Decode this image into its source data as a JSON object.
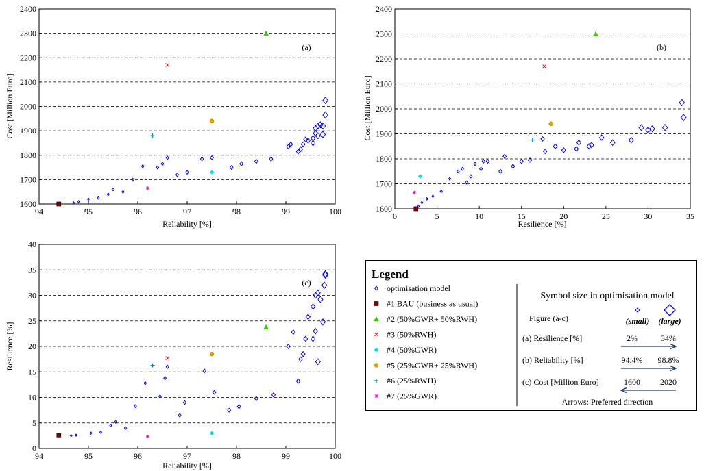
{
  "colors": {
    "optimisation": "#0000ff",
    "bau": "#8b0000",
    "gwr50_rwh50": "#33cc00",
    "rwh50": "#ff0000",
    "gwr50": "#00e5ee",
    "gwr25_rwh25": "#e0a800",
    "rwh25": "#008fb0",
    "gwr25": "#ff00cc"
  },
  "chart_data": [
    {
      "id": "a",
      "type": "scatter",
      "panel_label": "(a)",
      "xlabel": "Reliability [%]",
      "ylabel": "Cost [Million Euro]",
      "xlim": [
        94,
        100
      ],
      "ylim": [
        1600,
        2400
      ],
      "xticks": [
        "94",
        "95",
        "96",
        "97",
        "98",
        "99",
        "100"
      ],
      "yticks": [
        "1600",
        "1700",
        "1800",
        "1900",
        "2000",
        "2100",
        "2200",
        "2300",
        "2400"
      ],
      "grid": "horizontal dashed",
      "optimisation_points": [
        [
          94.7,
          1605
        ],
        [
          94.8,
          1610
        ],
        [
          95.0,
          1620
        ],
        [
          95.2,
          1625
        ],
        [
          95.4,
          1640
        ],
        [
          95.5,
          1660
        ],
        [
          95.7,
          1650
        ],
        [
          95.9,
          1700
        ],
        [
          96.1,
          1755
        ],
        [
          96.4,
          1750
        ],
        [
          96.5,
          1765
        ],
        [
          96.6,
          1790
        ],
        [
          96.8,
          1720
        ],
        [
          97.0,
          1730
        ],
        [
          97.3,
          1785
        ],
        [
          97.5,
          1790
        ],
        [
          97.9,
          1750
        ],
        [
          98.1,
          1765
        ],
        [
          98.4,
          1775
        ],
        [
          98.7,
          1785
        ],
        [
          99.05,
          1835
        ],
        [
          99.1,
          1845
        ],
        [
          99.25,
          1815
        ],
        [
          99.3,
          1825
        ],
        [
          99.35,
          1845
        ],
        [
          99.4,
          1865
        ],
        [
          99.45,
          1860
        ],
        [
          99.55,
          1850
        ],
        [
          99.55,
          1870
        ],
        [
          99.6,
          1890
        ],
        [
          99.6,
          1910
        ],
        [
          99.65,
          1920
        ],
        [
          99.65,
          1880
        ],
        [
          99.7,
          1925
        ],
        [
          99.75,
          1885
        ],
        [
          99.75,
          1920
        ],
        [
          99.8,
          1965
        ],
        [
          99.8,
          2025
        ]
      ],
      "special_points": [
        {
          "series": "bau",
          "x": 94.4,
          "y": 1600
        },
        {
          "series": "gwr50_rwh50",
          "x": 98.6,
          "y": 2300
        },
        {
          "series": "rwh50",
          "x": 96.6,
          "y": 2170
        },
        {
          "series": "gwr50",
          "x": 97.5,
          "y": 1730
        },
        {
          "series": "gwr25_rwh25",
          "x": 97.5,
          "y": 1940
        },
        {
          "series": "rwh25",
          "x": 96.3,
          "y": 1880
        },
        {
          "series": "gwr25",
          "x": 96.2,
          "y": 1665
        }
      ]
    },
    {
      "id": "b",
      "type": "scatter",
      "panel_label": "(b)",
      "xlabel": "Resilience [%]",
      "ylabel": "Cost [Million Euro]",
      "xlim": [
        0,
        35
      ],
      "ylim": [
        1600,
        2400
      ],
      "xticks": [
        "0",
        "5",
        "10",
        "15",
        "20",
        "25",
        "30",
        "35"
      ],
      "yticks": [
        "1600",
        "1700",
        "1800",
        "1900",
        "2000",
        "2100",
        "2200",
        "2300",
        "2400"
      ],
      "grid": "horizontal dashed",
      "optimisation_points": [
        [
          2.5,
          1605
        ],
        [
          2.8,
          1610
        ],
        [
          3.2,
          1625
        ],
        [
          3.8,
          1640
        ],
        [
          4.5,
          1650
        ],
        [
          5.5,
          1670
        ],
        [
          6.5,
          1720
        ],
        [
          7.5,
          1750
        ],
        [
          8.0,
          1760
        ],
        [
          8.5,
          1705
        ],
        [
          9.0,
          1730
        ],
        [
          9.5,
          1780
        ],
        [
          10.2,
          1760
        ],
        [
          10.5,
          1790
        ],
        [
          11.0,
          1790
        ],
        [
          12.5,
          1750
        ],
        [
          13.0,
          1810
        ],
        [
          14.0,
          1770
        ],
        [
          15.0,
          1790
        ],
        [
          16.0,
          1795
        ],
        [
          17.5,
          1880
        ],
        [
          17.8,
          1830
        ],
        [
          19.0,
          1850
        ],
        [
          20.0,
          1835
        ],
        [
          21.5,
          1840
        ],
        [
          21.8,
          1865
        ],
        [
          23.0,
          1850
        ],
        [
          23.3,
          1855
        ],
        [
          24.5,
          1885
        ],
        [
          25.8,
          1865
        ],
        [
          28.0,
          1875
        ],
        [
          29.2,
          1925
        ],
        [
          30.0,
          1915
        ],
        [
          30.5,
          1920
        ],
        [
          32.0,
          1925
        ],
        [
          34.0,
          2025
        ],
        [
          34.2,
          1965
        ]
      ],
      "special_points": [
        {
          "series": "bau",
          "x": 2.5,
          "y": 1600
        },
        {
          "series": "gwr50_rwh50",
          "x": 23.8,
          "y": 2300
        },
        {
          "series": "rwh50",
          "x": 17.7,
          "y": 2170
        },
        {
          "series": "gwr50",
          "x": 3.0,
          "y": 1730
        },
        {
          "series": "gwr25_rwh25",
          "x": 18.5,
          "y": 1940
        },
        {
          "series": "rwh25",
          "x": 16.3,
          "y": 1875
        },
        {
          "series": "gwr25",
          "x": 2.3,
          "y": 1665
        }
      ]
    },
    {
      "id": "c",
      "type": "scatter",
      "panel_label": "(c)",
      "xlabel": "Reliability [%]",
      "ylabel": "Resilience [%]",
      "xlim": [
        94,
        100
      ],
      "ylim": [
        0,
        40
      ],
      "xticks": [
        "94",
        "95",
        "96",
        "97",
        "98",
        "99",
        "100"
      ],
      "yticks": [
        "0",
        "5",
        "10",
        "15",
        "20",
        "25",
        "30",
        "35",
        "40"
      ],
      "grid": "horizontal dashed",
      "optimisation_points": [
        [
          94.65,
          2.5
        ],
        [
          94.75,
          2.6
        ],
        [
          95.05,
          3.0
        ],
        [
          95.25,
          3.2
        ],
        [
          95.45,
          4.5
        ],
        [
          95.55,
          5.2
        ],
        [
          95.75,
          4.0
        ],
        [
          95.95,
          8.3
        ],
        [
          96.15,
          12.8
        ],
        [
          96.45,
          10.2
        ],
        [
          96.55,
          13.8
        ],
        [
          96.6,
          16.0
        ],
        [
          96.85,
          6.5
        ],
        [
          96.95,
          9.0
        ],
        [
          97.35,
          15.2
        ],
        [
          97.55,
          11.0
        ],
        [
          97.85,
          7.5
        ],
        [
          98.05,
          8.2
        ],
        [
          98.4,
          9.8
        ],
        [
          98.75,
          10.5
        ],
        [
          99.05,
          20.0
        ],
        [
          99.15,
          22.8
        ],
        [
          99.25,
          13.2
        ],
        [
          99.3,
          17.5
        ],
        [
          99.35,
          18.5
        ],
        [
          99.4,
          21.5
        ],
        [
          99.45,
          25.8
        ],
        [
          99.55,
          21.5
        ],
        [
          99.55,
          27.8
        ],
        [
          99.6,
          23.0
        ],
        [
          99.6,
          30.0
        ],
        [
          99.65,
          30.5
        ],
        [
          99.65,
          17.0
        ],
        [
          99.7,
          29.2
        ],
        [
          99.75,
          24.8
        ],
        [
          99.78,
          32.0
        ],
        [
          99.8,
          34.0
        ],
        [
          99.8,
          34.2
        ]
      ],
      "special_points": [
        {
          "series": "bau",
          "x": 94.4,
          "y": 2.5
        },
        {
          "series": "gwr50_rwh50",
          "x": 98.6,
          "y": 23.8
        },
        {
          "series": "rwh50",
          "x": 96.6,
          "y": 17.7
        },
        {
          "series": "gwr50",
          "x": 97.5,
          "y": 3.0
        },
        {
          "series": "gwr25_rwh25",
          "x": 97.5,
          "y": 18.5
        },
        {
          "series": "rwh25",
          "x": 96.3,
          "y": 16.3
        },
        {
          "series": "gwr25",
          "x": 96.2,
          "y": 2.3
        }
      ]
    }
  ],
  "legend": {
    "title": "Legend",
    "items": [
      {
        "series": "optimisation",
        "label": "optimisation model"
      },
      {
        "series": "bau",
        "label": "#1 BAU (business as usual)"
      },
      {
        "series": "gwr50_rwh50",
        "label": "#2 (50%GWR+ 50%RWH)"
      },
      {
        "series": "rwh50",
        "label": "#3 (50%RWH)"
      },
      {
        "series": "gwr50",
        "label": "#4 (50%GWR)"
      },
      {
        "series": "gwr25_rwh25",
        "label": "#5 (25%GWR+ 25%RWH)"
      },
      {
        "series": "rwh25",
        "label": "#6 (25%RWH)"
      },
      {
        "series": "gwr25",
        "label": "#7 (25%GWR)"
      }
    ],
    "symbol_size": {
      "title": "Symbol size in optimisation model",
      "figure_label": "Figure (a-c)",
      "small": "(small)",
      "large": "(large)",
      "rows": [
        {
          "label": "(a) Resilience [%]",
          "low": "2%",
          "high": "34%",
          "direction": "right"
        },
        {
          "label": "(b) Reliability [%]",
          "low": "94.4%",
          "high": "98.8%",
          "direction": "right"
        },
        {
          "label": "(c) Cost [Million Euro]",
          "low": "1600",
          "high": "2020",
          "direction": "left"
        }
      ],
      "note": "Arrows: Preferred direction"
    }
  }
}
